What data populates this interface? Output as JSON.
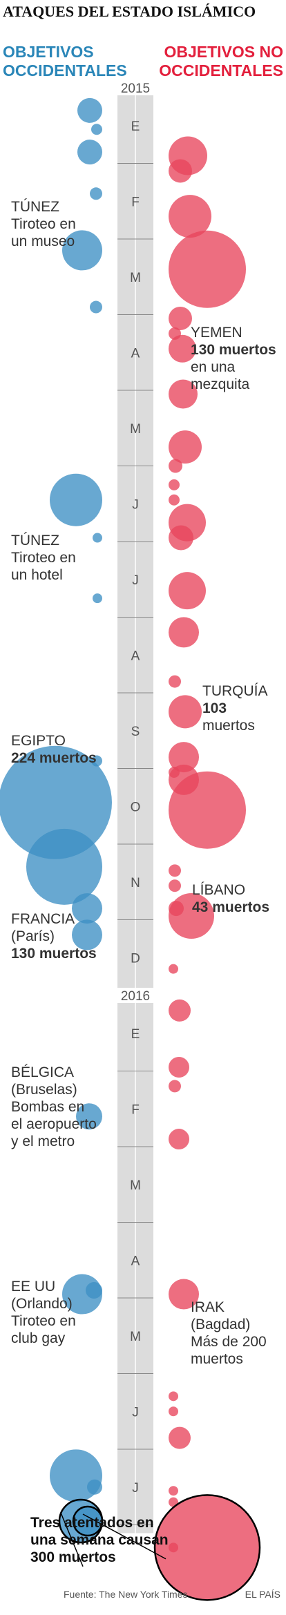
{
  "title": "ATAQUES DEL ESTADO ISLÁMICO",
  "categories": {
    "west": [
      "OBJETIVOS",
      "OCCIDENTALES"
    ],
    "non_west": [
      "OBJETIVOS NO",
      "OCCIDENTALES"
    ]
  },
  "colors": {
    "west": "#3d8fc4",
    "non_west": "#e8455c",
    "axis": "#dcdcdc"
  },
  "chart_data": {
    "type": "bubble-timeline",
    "years": [
      {
        "label": "2015",
        "at_month": 0
      },
      {
        "label": "2016",
        "at_month": 12
      }
    ],
    "months": [
      "E",
      "F",
      "M",
      "A",
      "M",
      "J",
      "J",
      "A",
      "S",
      "O",
      "N",
      "D",
      "E",
      "F",
      "M",
      "A",
      "M",
      "J",
      "J"
    ],
    "series": [
      {
        "name": "west",
        "points": [
          {
            "t": 0.3,
            "size": 18
          },
          {
            "t": 0.55,
            "size": 8
          },
          {
            "t": 0.85,
            "size": 18
          },
          {
            "t": 1.4,
            "size": 9
          },
          {
            "t": 2.15,
            "size": 29
          },
          {
            "t": 2.9,
            "size": 9
          },
          {
            "t": 5.45,
            "size": 38
          },
          {
            "t": 5.95,
            "size": 7
          },
          {
            "t": 6.75,
            "size": 7
          },
          {
            "t": 8.9,
            "size": 8
          },
          {
            "t": 9.45,
            "size": 82
          },
          {
            "t": 10.3,
            "size": 55
          },
          {
            "t": 10.85,
            "size": 22
          },
          {
            "t": 11.2,
            "size": 22
          },
          {
            "t": 13.6,
            "size": 19
          },
          {
            "t": 15.95,
            "size": 29
          },
          {
            "t": 15.9,
            "size": 12
          },
          {
            "t": 18.35,
            "size": 38
          },
          {
            "t": 18.5,
            "size": 11
          },
          {
            "t": 18.95,
            "size": 31
          },
          {
            "t": 18.95,
            "size": 21
          }
        ]
      },
      {
        "name": "non_west",
        "points": [
          {
            "t": 0.9,
            "size": 28
          },
          {
            "t": 1.1,
            "size": 17
          },
          {
            "t": 1.7,
            "size": 31
          },
          {
            "t": 2.4,
            "size": 56
          },
          {
            "t": 3.05,
            "size": 17
          },
          {
            "t": 3.25,
            "size": 9
          },
          {
            "t": 3.45,
            "size": 20
          },
          {
            "t": 4.05,
            "size": 21
          },
          {
            "t": 4.75,
            "size": 24
          },
          {
            "t": 5.0,
            "size": 10
          },
          {
            "t": 5.25,
            "size": 8
          },
          {
            "t": 5.45,
            "size": 8
          },
          {
            "t": 5.75,
            "size": 27
          },
          {
            "t": 5.95,
            "size": 18
          },
          {
            "t": 6.65,
            "size": 27
          },
          {
            "t": 7.2,
            "size": 22
          },
          {
            "t": 7.85,
            "size": 9
          },
          {
            "t": 8.25,
            "size": 24
          },
          {
            "t": 8.85,
            "size": 22
          },
          {
            "t": 9.15,
            "size": 22
          },
          {
            "t": 9.05,
            "size": 8
          },
          {
            "t": 9.55,
            "size": 56
          },
          {
            "t": 10.35,
            "size": 9
          },
          {
            "t": 10.55,
            "size": 9
          },
          {
            "t": 10.85,
            "size": 11
          },
          {
            "t": 10.95,
            "size": 33
          },
          {
            "t": 11.65,
            "size": 7
          },
          {
            "t": 12.2,
            "size": 16
          },
          {
            "t": 12.95,
            "size": 15
          },
          {
            "t": 13.2,
            "size": 9
          },
          {
            "t": 13.9,
            "size": 15
          },
          {
            "t": 15.95,
            "size": 22
          },
          {
            "t": 17.3,
            "size": 7
          },
          {
            "t": 17.5,
            "size": 7
          },
          {
            "t": 17.85,
            "size": 16
          },
          {
            "t": 18.55,
            "size": 7
          },
          {
            "t": 18.7,
            "size": 7
          },
          {
            "t": 19.3,
            "size": 76
          },
          {
            "t": 19.3,
            "size": 7
          }
        ]
      }
    ]
  },
  "annotations": [
    {
      "lines": [
        "TÚNEZ",
        "Tiroteo en",
        "un museo"
      ],
      "bold": []
    },
    {
      "lines": [
        "YEMEN",
        "130 muertos",
        "en una",
        "mezquita"
      ],
      "bold": [
        1
      ]
    },
    {
      "lines": [
        "TÚNEZ",
        "Tiroteo en",
        "un hotel"
      ],
      "bold": []
    },
    {
      "lines": [
        "TURQUÍA",
        "103",
        "muertos"
      ],
      "bold": [
        1
      ]
    },
    {
      "lines": [
        "EGIPTO",
        "224 muertos"
      ],
      "bold": [
        1
      ]
    },
    {
      "lines": [
        "LÍBANO",
        "43 muertos"
      ],
      "bold": [
        1
      ]
    },
    {
      "lines": [
        "FRANCIA",
        "(París)",
        "130 muertos"
      ],
      "bold": [
        2
      ]
    },
    {
      "lines": [
        "BÉLGICA",
        "(Bruselas)",
        "Bombas en",
        "el aeropuerto",
        "y el metro"
      ],
      "bold": []
    },
    {
      "lines": [
        "EE UU",
        "(Orlando)",
        "Tiroteo en",
        "club gay"
      ],
      "bold": []
    },
    {
      "lines": [
        "IRAK",
        "(Bagdad)",
        "Más de 200",
        "muertos"
      ],
      "bold": []
    }
  ],
  "note": [
    "Tres atentados en",
    "una semana causan",
    "300 muertos"
  ],
  "footer": {
    "source": "Fuente: The New York Times.",
    "brand": "EL PAÍS"
  }
}
